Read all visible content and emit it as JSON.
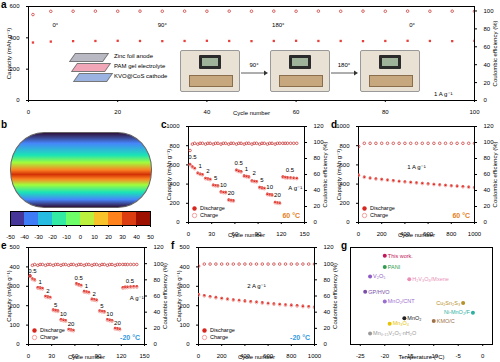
{
  "chart_data": [
    {
      "panel": "a",
      "type": "scatter",
      "x": [
        1,
        5,
        10,
        15,
        20,
        25,
        30,
        35,
        40,
        45,
        50,
        55,
        60,
        65,
        70,
        75,
        80,
        85,
        90,
        95,
        100
      ],
      "series": [
        {
          "color": "#e8413c",
          "marker": "square",
          "values": [
            370,
            376,
            379,
            380,
            381,
            380,
            379,
            380,
            381,
            380,
            379,
            380,
            381,
            380,
            380,
            379,
            380,
            381,
            380,
            379,
            380
          ]
        },
        {
          "color": "#c62828",
          "marker": "open circle",
          "axis": "y2",
          "values": [
            96,
            99.6,
            99.7,
            99.8,
            99.7,
            99.8,
            99.7,
            99.8,
            99.7,
            99.8,
            99.7,
            99.8,
            99.7,
            99.8,
            99.7,
            99.8,
            99.7,
            99.8,
            99.7,
            99.8,
            99.7
          ]
        }
      ],
      "xlim": [
        0,
        100
      ],
      "xticks": [
        0,
        20,
        40,
        60,
        80,
        100
      ],
      "ylim": [
        0,
        600
      ],
      "yticks": [
        0,
        200,
        400,
        600
      ],
      "y2lim": [
        0,
        105
      ],
      "y2ticks": [
        0,
        20,
        40,
        60,
        80,
        100
      ],
      "x_label": "Cycle number",
      "y_label": "Capacity (mAh g⁻¹)",
      "y2_label": "Coulombic efficiency (%)",
      "annotations": [
        {
          "text": "0°",
          "x": 6,
          "y": 480
        },
        {
          "text": "90°",
          "x": 30,
          "y": 480
        },
        {
          "text": "180°",
          "x": 56,
          "y": 480
        },
        {
          "text": "0°",
          "x": 86,
          "y": 480
        },
        {
          "text": "1 A g⁻¹",
          "x": 93,
          "y": 40
        }
      ],
      "inset": {
        "layers": [
          "Zinc foil anode",
          "PAM gel electrolyte",
          "KVO@CoS cathode"
        ],
        "steps": [
          "90°",
          "180°"
        ]
      }
    },
    {
      "panel": "b",
      "type": "map",
      "colorbar_range": [
        -50,
        50
      ],
      "colorbar_ticks": [
        -50,
        -40,
        -30,
        -20,
        -10,
        0,
        10,
        20,
        30,
        40,
        50
      ]
    },
    {
      "panel": "c",
      "type": "scatter",
      "condition": "60 °C",
      "x": [
        2,
        5,
        8,
        12,
        15,
        18,
        22,
        25,
        28,
        32,
        35,
        38,
        42,
        45,
        48,
        52,
        55,
        58,
        62,
        65,
        68,
        72,
        75,
        78,
        82,
        85,
        88,
        92,
        95,
        98,
        102,
        105,
        108,
        112,
        115,
        118,
        122,
        125,
        128,
        132,
        136,
        140
      ],
      "series": [
        {
          "name": "Discharge",
          "color": "#d7261e",
          "marker": "circle",
          "values": [
            608,
            583,
            568,
            518,
            508,
            503,
            463,
            458,
            453,
            393,
            388,
            386,
            323,
            318,
            316,
            238,
            233,
            230,
            548,
            538,
            533,
            488,
            483,
            478,
            438,
            433,
            430,
            368,
            363,
            360,
            298,
            293,
            290,
            213,
            208,
            206,
            478,
            473,
            470,
            468,
            466,
            464
          ]
        },
        {
          "name": "Charge",
          "color": "#f08a84",
          "marker": "open circle",
          "values": [
            600,
            575,
            560,
            510,
            500,
            495,
            455,
            450,
            445,
            385,
            380,
            378,
            315,
            310,
            308,
            230,
            225,
            222,
            540,
            530,
            525,
            480,
            475,
            470,
            430,
            425,
            422,
            360,
            355,
            352,
            290,
            285,
            282,
            205,
            200,
            198,
            470,
            465,
            462,
            460,
            458,
            456
          ]
        },
        {
          "color": "#c62828",
          "marker": "open circle",
          "axis": "y2",
          "values": [
            90,
            98,
            99,
            98,
            99,
            99,
            98,
            99,
            99,
            98,
            99,
            99,
            98,
            99,
            99,
            98,
            99,
            99,
            98,
            99,
            99,
            98,
            99,
            99,
            98,
            99,
            99,
            98,
            99,
            99,
            98,
            99,
            99,
            98,
            99,
            99,
            99,
            99,
            99,
            99,
            99,
            99
          ]
        }
      ],
      "xlim": [
        0,
        150
      ],
      "xticks": [
        0,
        30,
        60,
        90,
        120,
        150
      ],
      "ylim": [
        0,
        1000
      ],
      "yticks": [
        0,
        200,
        400,
        600,
        800,
        1000
      ],
      "y2lim": [
        0,
        120
      ],
      "y2ticks": [
        0,
        20,
        40,
        60,
        80,
        100,
        120
      ],
      "x_label": "Cycle number",
      "y_label": "Capacity (mAh g⁻¹)",
      "y2_label": "Coulombic efficiency (%)",
      "annotations": [
        {
          "text": "0.5",
          "x": 5,
          "y": 680
        },
        {
          "text": "1",
          "x": 15,
          "y": 590
        },
        {
          "text": "2",
          "x": 25,
          "y": 535
        },
        {
          "text": "5",
          "x": 35,
          "y": 465
        },
        {
          "text": "10",
          "x": 45,
          "y": 395
        },
        {
          "text": "20",
          "x": 55,
          "y": 310
        },
        {
          "text": "0.5",
          "x": 65,
          "y": 620
        },
        {
          "text": "1",
          "x": 75,
          "y": 560
        },
        {
          "text": "2",
          "x": 85,
          "y": 510
        },
        {
          "text": "5",
          "x": 95,
          "y": 440
        },
        {
          "text": "10",
          "x": 105,
          "y": 370
        },
        {
          "text": "20",
          "x": 115,
          "y": 285
        },
        {
          "text": "0.5",
          "x": 131,
          "y": 550
        },
        {
          "text": "A g⁻¹",
          "x": 138,
          "y": 360
        }
      ]
    },
    {
      "panel": "d",
      "type": "scatter",
      "condition": "60 °C",
      "x": [
        1,
        50,
        100,
        150,
        200,
        250,
        300,
        350,
        400,
        450,
        500,
        550,
        600,
        650,
        700,
        750,
        800,
        850,
        900,
        950,
        1000
      ],
      "series": [
        {
          "name": "Discharge",
          "color": "#d7261e",
          "marker": "circle",
          "values": [
            496,
            476,
            466,
            458,
            452,
            446,
            439,
            433,
            427,
            422,
            416,
            411,
            406,
            401,
            396,
            391,
            386,
            382,
            377,
            372,
            368
          ]
        },
        {
          "name": "Charge",
          "color": "#f08a84",
          "marker": "open circle",
          "values": [
            490,
            470,
            460,
            452,
            446,
            440,
            433,
            427,
            421,
            416,
            410,
            405,
            400,
            395,
            390,
            385,
            380,
            376,
            371,
            366,
            362
          ]
        },
        {
          "color": "#c62828",
          "marker": "open circle",
          "axis": "y2",
          "values": [
            95,
            99,
            99,
            99,
            99,
            99,
            99,
            99,
            99,
            99,
            99,
            99,
            99,
            99,
            99,
            99,
            99,
            99,
            99,
            99,
            99
          ]
        }
      ],
      "xlim": [
        0,
        1000
      ],
      "xticks": [
        0,
        200,
        400,
        600,
        800,
        1000
      ],
      "ylim": [
        0,
        1000
      ],
      "yticks": [
        0,
        200,
        400,
        600,
        800,
        1000
      ],
      "y2lim": [
        0,
        120
      ],
      "y2ticks": [
        0,
        20,
        40,
        60,
        80,
        100,
        120
      ],
      "x_label": "Cycle number",
      "y_label": "Capacity (mAh g⁻¹)",
      "y2_label": "Coulombic efficiency (%)",
      "annotations": [
        {
          "text": "1 A g⁻¹",
          "x": 500,
          "y": 580
        }
      ]
    },
    {
      "panel": "e",
      "type": "scatter",
      "condition": "-20 °C",
      "x": [
        2,
        5,
        8,
        12,
        15,
        18,
        22,
        25,
        28,
        32,
        35,
        38,
        42,
        45,
        48,
        52,
        55,
        58,
        62,
        65,
        68,
        72,
        75,
        78,
        82,
        85,
        88,
        92,
        95,
        98,
        102,
        105,
        108,
        112,
        115,
        118,
        122,
        125,
        128,
        132,
        136,
        140
      ],
      "series": [
        {
          "name": "Discharge",
          "color": "#d7261e",
          "marker": "circle",
          "values": [
            355,
            340,
            335,
            295,
            293,
            291,
            250,
            247,
            245,
            180,
            177,
            175,
            130,
            127,
            125,
            80,
            77,
            75,
            315,
            310,
            307,
            275,
            273,
            271,
            235,
            233,
            231,
            175,
            173,
            171,
            130,
            127,
            125,
            85,
            83,
            81,
            295,
            297,
            298,
            299,
            300,
            300
          ]
        },
        {
          "name": "Charge",
          "color": "#f08a84",
          "marker": "open circle",
          "values": [
            350,
            335,
            330,
            290,
            288,
            286,
            245,
            242,
            240,
            175,
            172,
            170,
            125,
            122,
            120,
            75,
            72,
            70,
            310,
            305,
            302,
            270,
            268,
            266,
            230,
            228,
            226,
            170,
            168,
            166,
            125,
            122,
            120,
            80,
            78,
            76,
            290,
            292,
            293,
            294,
            295,
            295
          ]
        },
        {
          "color": "#c62828",
          "marker": "open circle",
          "axis": "y2",
          "values": [
            85,
            98,
            99,
            98,
            99,
            99,
            98,
            99,
            99,
            98,
            99,
            99,
            98,
            99,
            99,
            98,
            99,
            99,
            98,
            99,
            99,
            98,
            99,
            99,
            98,
            99,
            99,
            98,
            99,
            99,
            98,
            99,
            99,
            98,
            99,
            99,
            99,
            99,
            99,
            99,
            99,
            99
          ]
        }
      ],
      "xlim": [
        0,
        150
      ],
      "xticks": [
        0,
        30,
        60,
        90,
        120,
        150
      ],
      "ylim": [
        0,
        500
      ],
      "yticks": [
        0,
        100,
        200,
        300,
        400,
        500
      ],
      "y2lim": [
        0,
        120
      ],
      "y2ticks": [
        0,
        20,
        40,
        60,
        80,
        100,
        120
      ],
      "x_label": "Cycle number",
      "y_label": "Capacity (mAh g⁻¹)",
      "y2_label": "Coulombic efficiency (%)",
      "annotations": [
        {
          "text": "0.5",
          "x": 5,
          "y": 380
        },
        {
          "text": "1",
          "x": 15,
          "y": 320
        },
        {
          "text": "2",
          "x": 25,
          "y": 275
        },
        {
          "text": "5",
          "x": 35,
          "y": 205
        },
        {
          "text": "10",
          "x": 45,
          "y": 155
        },
        {
          "text": "20",
          "x": 55,
          "y": 105
        },
        {
          "text": "0.5",
          "x": 65,
          "y": 340
        },
        {
          "text": "1",
          "x": 75,
          "y": 300
        },
        {
          "text": "2",
          "x": 85,
          "y": 260
        },
        {
          "text": "5",
          "x": 95,
          "y": 200
        },
        {
          "text": "10",
          "x": 105,
          "y": 155
        },
        {
          "text": "20",
          "x": 115,
          "y": 110
        },
        {
          "text": "0.5",
          "x": 131,
          "y": 325
        },
        {
          "text": "A g⁻¹",
          "x": 140,
          "y": 240
        }
      ]
    },
    {
      "panel": "f",
      "type": "scatter",
      "condition": "-20 °C",
      "x": [
        1,
        50,
        100,
        150,
        200,
        250,
        300,
        350,
        400,
        450,
        500,
        550,
        600,
        650,
        700,
        750,
        800,
        850,
        900,
        950,
        1000
      ],
      "series": [
        {
          "name": "Discharge",
          "color": "#d7261e",
          "marker": "circle",
          "values": [
            259,
            254,
            249,
            244,
            240,
            236,
            232,
            229,
            226,
            223,
            220,
            217,
            214,
            211,
            209,
            206,
            204,
            202,
            199,
            197,
            194
          ]
        },
        {
          "name": "Charge",
          "color": "#f08a84",
          "marker": "open circle",
          "values": [
            255,
            250,
            245,
            240,
            236,
            232,
            228,
            225,
            222,
            219,
            216,
            213,
            210,
            207,
            205,
            202,
            200,
            198,
            195,
            193,
            190
          ]
        },
        {
          "color": "#c62828",
          "marker": "open circle",
          "axis": "y2",
          "values": [
            97,
            99.5,
            99.5,
            99.5,
            99.5,
            99.5,
            99.5,
            99.5,
            99.5,
            99.5,
            99.5,
            99.5,
            99.5,
            99.5,
            99.5,
            99.5,
            99.5,
            99.5,
            99.5,
            99.5,
            99.5
          ]
        }
      ],
      "xlim": [
        0,
        1000
      ],
      "xticks": [
        0,
        200,
        400,
        600,
        800,
        1000
      ],
      "ylim": [
        0,
        500
      ],
      "yticks": [
        0,
        100,
        200,
        300,
        400,
        500
      ],
      "y2lim": [
        0,
        120
      ],
      "y2ticks": [
        0,
        20,
        40,
        60,
        80,
        100,
        120
      ],
      "x_label": "Cycle number",
      "y_label": "Capacity (mAh g⁻¹)",
      "y2_label": "Coulombic efficiency (%)",
      "annotations": [
        {
          "text": "2 A g⁻¹",
          "x": 500,
          "y": 300
        }
      ]
    },
    {
      "panel": "g",
      "type": "scatter",
      "marker": "circle",
      "tick_labels": "x",
      "x": [
        -20,
        -20,
        -15,
        -23,
        -24,
        -20,
        -4,
        -2,
        -16,
        -19,
        -10,
        -23
      ],
      "values": [
        470,
        430,
        385,
        395,
        340,
        305,
        300,
        265,
        245,
        225,
        235,
        190
      ],
      "labels": [
        "This work.",
        "PANI",
        "H₂V₃O₈/Mxene",
        "V₂O₅",
        "GP/HVO",
        "MnO₂/CNT",
        "Cu₂Sn₂S₃",
        "Ni-MnO₂/F",
        "MnO₂",
        "Mn₃O₄",
        "KMO/C",
        "Mn₀.₁₅V₂O₅·nH₂O"
      ],
      "colors": [
        "#c2185b",
        "#2e9d52",
        "#e98fb8",
        "#8e5cc5",
        "#7a4fa8",
        "#9b6fd1",
        "#b8912a",
        "#2fb0a0",
        "#222222",
        "#e6c200",
        "#a0724a",
        "#999999"
      ],
      "xlim": [
        -27,
        2
      ],
      "xticks": [
        -25,
        -20,
        -15,
        -10,
        -5,
        0
      ],
      "ylim": [
        150,
        500
      ],
      "x_label": "Temperature (°C)"
    }
  ]
}
